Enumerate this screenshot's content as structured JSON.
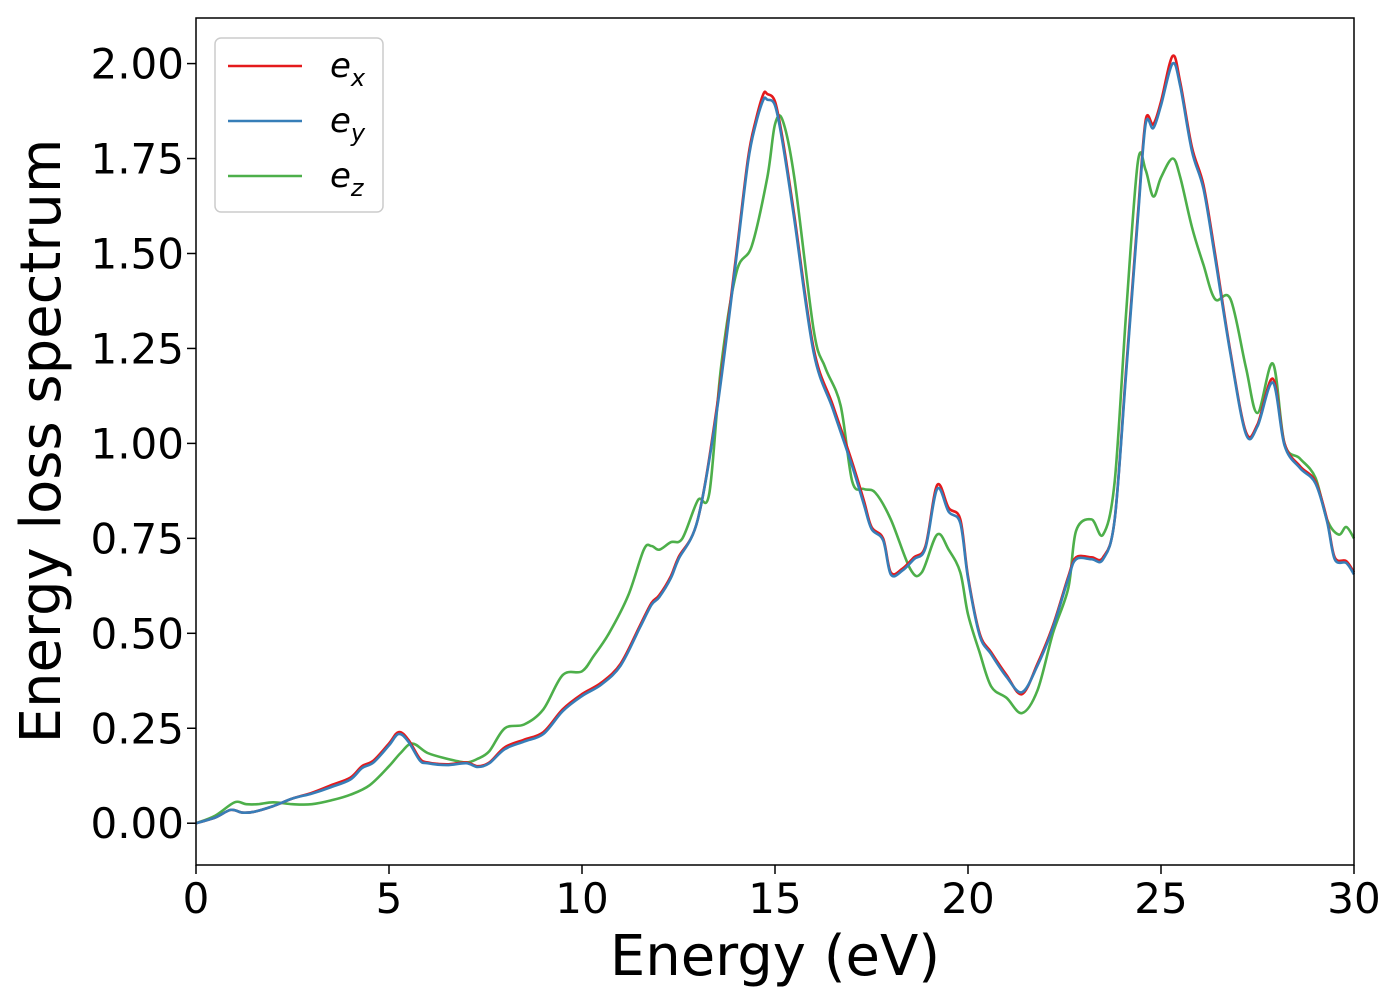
{
  "chart_data": {
    "type": "line",
    "xlabel": "Energy (eV)",
    "ylabel": "Energy loss spectrum",
    "xlim": [
      0,
      30
    ],
    "ylim": [
      -0.11,
      2.12
    ],
    "xticks": [
      0,
      5,
      10,
      15,
      20,
      25,
      30
    ],
    "xtick_labels": [
      "0",
      "5",
      "10",
      "15",
      "20",
      "25",
      "30"
    ],
    "yticks": [
      0.0,
      0.25,
      0.5,
      0.75,
      1.0,
      1.25,
      1.5,
      1.75,
      2.0
    ],
    "ytick_labels": [
      "0.00",
      "0.25",
      "0.50",
      "0.75",
      "1.00",
      "1.25",
      "1.50",
      "1.75",
      "2.00"
    ],
    "grid": false,
    "legend_position": "top-left",
    "series": [
      {
        "name": "e",
        "sub": "x",
        "color": "#e41a1c",
        "x": [
          0,
          0.5,
          0.9,
          1.2,
          1.5,
          2,
          2.5,
          3,
          3.5,
          4,
          4.3,
          4.6,
          5,
          5.25,
          5.5,
          5.8,
          6,
          6.5,
          7,
          7.3,
          7.6,
          8,
          8.5,
          9,
          9.5,
          10,
          10.5,
          11,
          11.5,
          11.8,
          12,
          12.3,
          12.5,
          13,
          13.5,
          14,
          14.3,
          14.5,
          14.7,
          14.8,
          15,
          15.2,
          15.5,
          16,
          16.5,
          17,
          17.3,
          17.5,
          17.8,
          18,
          18.3,
          18.6,
          18.9,
          19.2,
          19.5,
          19.8,
          20,
          20.3,
          20.6,
          21,
          21.4,
          21.8,
          22.2,
          22.6,
          22.8,
          23.2,
          23.5,
          23.8,
          24.1,
          24.4,
          24.6,
          24.8,
          25,
          25.3,
          25.5,
          25.8,
          26.1,
          26.4,
          26.8,
          27.2,
          27.5,
          27.9,
          28.2,
          28.6,
          29,
          29.3,
          29.5,
          29.8,
          30
        ],
        "values": [
          0,
          0.015,
          0.035,
          0.028,
          0.03,
          0.045,
          0.065,
          0.08,
          0.1,
          0.12,
          0.15,
          0.165,
          0.21,
          0.24,
          0.22,
          0.17,
          0.16,
          0.155,
          0.16,
          0.15,
          0.16,
          0.2,
          0.22,
          0.24,
          0.3,
          0.34,
          0.37,
          0.42,
          0.52,
          0.58,
          0.6,
          0.65,
          0.7,
          0.8,
          1.1,
          1.5,
          1.75,
          1.85,
          1.92,
          1.92,
          1.9,
          1.8,
          1.6,
          1.25,
          1.1,
          0.95,
          0.85,
          0.78,
          0.75,
          0.66,
          0.67,
          0.7,
          0.73,
          0.89,
          0.83,
          0.8,
          0.65,
          0.5,
          0.45,
          0.39,
          0.34,
          0.42,
          0.52,
          0.65,
          0.7,
          0.7,
          0.7,
          0.8,
          1.2,
          1.6,
          1.85,
          1.84,
          1.9,
          2.02,
          1.95,
          1.78,
          1.68,
          1.5,
          1.24,
          1.03,
          1.05,
          1.17,
          1.0,
          0.94,
          0.9,
          0.8,
          0.7,
          0.69,
          0.66
        ]
      },
      {
        "name": "e",
        "sub": "y",
        "color": "#377eb8",
        "x": [
          0,
          0.5,
          0.9,
          1.2,
          1.5,
          2,
          2.5,
          3,
          3.5,
          4,
          4.3,
          4.6,
          5,
          5.25,
          5.5,
          5.8,
          6,
          6.5,
          7,
          7.3,
          7.6,
          8,
          8.5,
          9,
          9.5,
          10,
          10.5,
          11,
          11.5,
          11.8,
          12,
          12.3,
          12.5,
          13,
          13.5,
          14,
          14.3,
          14.5,
          14.7,
          14.8,
          15,
          15.2,
          15.5,
          16,
          16.5,
          17,
          17.3,
          17.5,
          17.8,
          18,
          18.3,
          18.6,
          18.9,
          19.2,
          19.5,
          19.8,
          20,
          20.3,
          20.6,
          21,
          21.4,
          21.8,
          22.2,
          22.6,
          22.8,
          23.2,
          23.5,
          23.8,
          24.1,
          24.4,
          24.6,
          24.8,
          25,
          25.3,
          25.5,
          25.8,
          26.1,
          26.4,
          26.8,
          27.2,
          27.5,
          27.9,
          28.2,
          28.6,
          29,
          29.3,
          29.5,
          29.8,
          30
        ],
        "values": [
          0,
          0.015,
          0.035,
          0.028,
          0.03,
          0.045,
          0.065,
          0.078,
          0.095,
          0.115,
          0.145,
          0.16,
          0.205,
          0.235,
          0.215,
          0.165,
          0.158,
          0.153,
          0.158,
          0.148,
          0.158,
          0.195,
          0.215,
          0.235,
          0.295,
          0.335,
          0.365,
          0.415,
          0.515,
          0.575,
          0.595,
          0.645,
          0.695,
          0.8,
          1.09,
          1.49,
          1.74,
          1.84,
          1.905,
          1.905,
          1.89,
          1.79,
          1.59,
          1.24,
          1.09,
          0.94,
          0.84,
          0.775,
          0.745,
          0.655,
          0.665,
          0.695,
          0.725,
          0.88,
          0.82,
          0.79,
          0.645,
          0.495,
          0.445,
          0.385,
          0.345,
          0.415,
          0.515,
          0.645,
          0.695,
          0.695,
          0.695,
          0.8,
          1.19,
          1.59,
          1.84,
          1.83,
          1.89,
          2.0,
          1.94,
          1.77,
          1.67,
          1.49,
          1.235,
          1.025,
          1.045,
          1.16,
          0.995,
          0.935,
          0.895,
          0.795,
          0.695,
          0.685,
          0.655
        ]
      },
      {
        "name": "e",
        "sub": "z",
        "color": "#4daf4a",
        "x": [
          0,
          0.5,
          1,
          1.3,
          1.6,
          2,
          2.5,
          3,
          3.5,
          4,
          4.5,
          5,
          5.3,
          5.6,
          6,
          6.5,
          7,
          7.3,
          7.6,
          8,
          8.5,
          9,
          9.5,
          10,
          10.3,
          10.7,
          11.2,
          11.6,
          11.8,
          12,
          12.3,
          12.6,
          13,
          13.3,
          13.6,
          14,
          14.4,
          14.8,
          15,
          15.2,
          15.5,
          16,
          16.3,
          16.7,
          17,
          17.3,
          17.6,
          18,
          18.5,
          18.8,
          19.2,
          19.5,
          19.8,
          20,
          20.3,
          20.6,
          21,
          21.4,
          21.8,
          22.2,
          22.6,
          22.8,
          23.2,
          23.5,
          23.8,
          24.1,
          24.4,
          24.6,
          24.8,
          25,
          25.3,
          25.5,
          25.8,
          26.1,
          26.4,
          26.8,
          27.2,
          27.5,
          27.9,
          28.2,
          28.6,
          29,
          29.3,
          29.6,
          29.8,
          30
        ],
        "values": [
          0,
          0.02,
          0.055,
          0.05,
          0.05,
          0.055,
          0.05,
          0.05,
          0.06,
          0.075,
          0.1,
          0.15,
          0.185,
          0.21,
          0.185,
          0.17,
          0.16,
          0.17,
          0.19,
          0.25,
          0.26,
          0.3,
          0.39,
          0.4,
          0.44,
          0.5,
          0.6,
          0.72,
          0.73,
          0.72,
          0.74,
          0.75,
          0.85,
          0.87,
          1.2,
          1.45,
          1.52,
          1.7,
          1.84,
          1.85,
          1.7,
          1.3,
          1.2,
          1.1,
          0.9,
          0.88,
          0.87,
          0.8,
          0.67,
          0.66,
          0.76,
          0.72,
          0.66,
          0.55,
          0.45,
          0.36,
          0.33,
          0.29,
          0.35,
          0.5,
          0.62,
          0.77,
          0.8,
          0.76,
          0.9,
          1.35,
          1.74,
          1.72,
          1.65,
          1.7,
          1.75,
          1.7,
          1.57,
          1.47,
          1.38,
          1.38,
          1.2,
          1.08,
          1.21,
          1.0,
          0.96,
          0.91,
          0.8,
          0.76,
          0.78,
          0.75
        ]
      }
    ]
  }
}
